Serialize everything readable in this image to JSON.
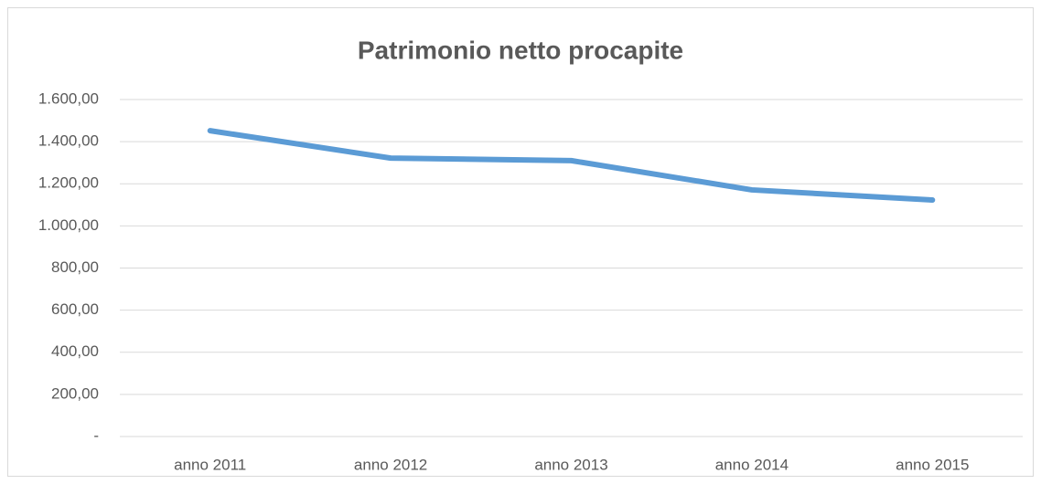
{
  "chart_data": {
    "type": "line",
    "title": "Patrimonio netto procapite",
    "categories": [
      "anno 2011",
      "anno 2012",
      "anno 2013",
      "anno 2014",
      "anno 2015"
    ],
    "series": [
      {
        "name": "Patrimonio netto procapite",
        "color": "#5b9bd5",
        "values": [
          1452,
          1322,
          1310,
          1171,
          1123
        ]
      }
    ],
    "ylim": [
      0,
      1600
    ],
    "yticks": [
      {
        "value": 0,
        "label": "-"
      },
      {
        "value": 200,
        "label": "200,00"
      },
      {
        "value": 400,
        "label": "400,00"
      },
      {
        "value": 600,
        "label": "600,00"
      },
      {
        "value": 800,
        "label": "800,00"
      },
      {
        "value": 1000,
        "label": "1.000,00"
      },
      {
        "value": 1200,
        "label": "1.200,00"
      },
      {
        "value": 1400,
        "label": "1.400,00"
      },
      {
        "value": 1600,
        "label": "1.600,00"
      }
    ],
    "grid": true
  }
}
